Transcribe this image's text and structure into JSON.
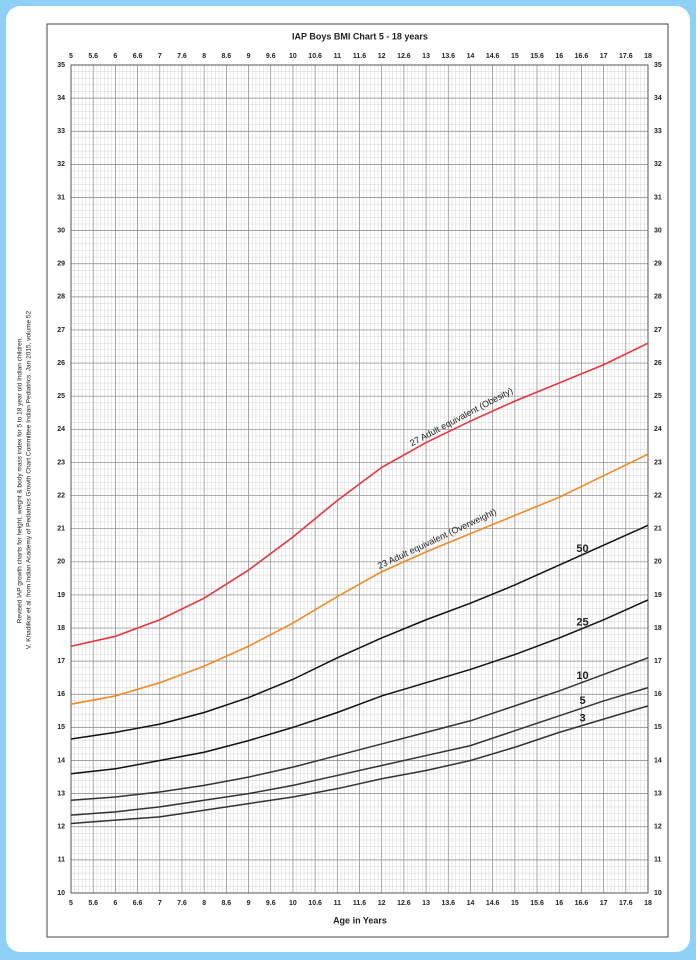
{
  "chart_data": {
    "type": "line",
    "title": "IAP Boys BMI Chart 5 - 18 years",
    "x_label": "Age in Years",
    "side_notes": [
      "Revised IAP growth charts for height, weight & body mass index for 5 to 18 year old Indian children.",
      "V. Khadilkar et al. from Indian Academy of Pediatrics Growth Chart Committee Indian Pediatrics. Jan 2015, volume 52"
    ],
    "x": [
      5,
      6,
      7,
      8,
      9,
      10,
      11,
      12,
      13,
      14,
      15,
      16,
      17,
      18
    ],
    "series": [
      {
        "name": "27 Adult equivalent (Obesity)",
        "color": "#e8343c",
        "values": [
          17.45,
          17.75,
          18.25,
          18.9,
          19.75,
          20.75,
          21.85,
          22.85,
          23.6,
          24.25,
          24.85,
          25.4,
          25.95,
          26.6
        ]
      },
      {
        "name": "23 Adult equivalent (Overweight)",
        "color": "#f08a24",
        "values": [
          15.7,
          15.95,
          16.35,
          16.85,
          17.45,
          18.15,
          18.95,
          19.7,
          20.3,
          20.85,
          21.4,
          21.95,
          22.6,
          23.25
        ]
      },
      {
        "name": "50",
        "color": "#111111",
        "values": [
          14.65,
          14.85,
          15.1,
          15.45,
          15.9,
          16.45,
          17.1,
          17.7,
          18.25,
          18.75,
          19.3,
          19.9,
          20.5,
          21.1
        ]
      },
      {
        "name": "25",
        "color": "#111111",
        "values": [
          13.6,
          13.75,
          14.0,
          14.25,
          14.6,
          15.0,
          15.45,
          15.95,
          16.35,
          16.75,
          17.2,
          17.7,
          18.25,
          18.85
        ]
      },
      {
        "name": "10",
        "color": "#333333",
        "values": [
          12.8,
          12.9,
          13.05,
          13.25,
          13.5,
          13.8,
          14.15,
          14.5,
          14.85,
          15.2,
          15.65,
          16.1,
          16.6,
          17.1
        ]
      },
      {
        "name": "5",
        "color": "#333333",
        "values": [
          12.35,
          12.45,
          12.6,
          12.8,
          13.0,
          13.25,
          13.55,
          13.85,
          14.15,
          14.45,
          14.9,
          15.35,
          15.8,
          16.2
        ]
      },
      {
        "name": "3",
        "color": "#333333",
        "values": [
          12.1,
          12.2,
          12.3,
          12.5,
          12.7,
          12.9,
          13.15,
          13.45,
          13.7,
          14.0,
          14.4,
          14.85,
          15.25,
          15.65
        ]
      }
    ],
    "xlim": [
      5,
      18
    ],
    "xticks": [
      5,
      {
        "value": 5.5,
        "label": "5.6"
      },
      6,
      {
        "value": 6.5,
        "label": "6.6"
      },
      7,
      {
        "value": 7.5,
        "label": "7.6"
      },
      8,
      {
        "value": 8.5,
        "label": "8.6"
      },
      9,
      {
        "value": 9.5,
        "label": "9.6"
      },
      10,
      {
        "value": 10.5,
        "label": "10.6"
      },
      11,
      {
        "value": 11.5,
        "label": "11.6"
      },
      12,
      {
        "value": 12.5,
        "label": "12.6"
      },
      13,
      {
        "value": 13.5,
        "label": "13.6"
      },
      14,
      {
        "value": 14.5,
        "label": "14.6"
      },
      15,
      {
        "value": 15.5,
        "label": "15.6"
      },
      16,
      {
        "value": 16.5,
        "label": "16.6"
      },
      17,
      {
        "value": 17.5,
        "label": "17.6"
      },
      18
    ],
    "ylim": [
      10,
      35
    ],
    "yticks": [
      10,
      11,
      12,
      13,
      14,
      15,
      16,
      17,
      18,
      19,
      20,
      21,
      22,
      23,
      24,
      25,
      26,
      27,
      28,
      29,
      30,
      31,
      32,
      33,
      34,
      35
    ],
    "grid": true
  }
}
